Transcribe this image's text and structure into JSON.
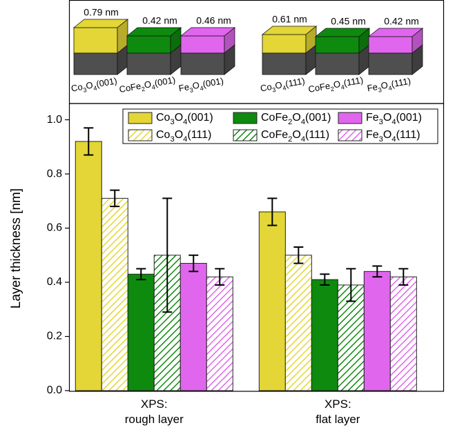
{
  "chart_data": {
    "type": "bar",
    "y_label": "Layer thickness [nm]",
    "categories": [
      "XPS:\nrough layer",
      "XPS:\nflat layer"
    ],
    "ylim": [
      0,
      1.06
    ],
    "yticks": [
      {
        "value": 0,
        "label": "0.0"
      },
      0.2,
      0.4,
      0.6,
      0.8,
      {
        "value": 1,
        "label": "1.0"
      }
    ],
    "series": [
      {
        "name": "Co3O4(001)",
        "color": "#e3d636",
        "hatch": false,
        "values": [
          0.92,
          0.66
        ],
        "errors": [
          0.05,
          0.05
        ]
      },
      {
        "name": "Co3O4(111)",
        "color": "#e3d636",
        "hatch": true,
        "values": [
          0.71,
          0.5
        ],
        "errors": [
          0.03,
          0.03
        ]
      },
      {
        "name": "CoFe2O4(001)",
        "color": "#0e8a0e",
        "hatch": false,
        "values": [
          0.43,
          0.41
        ],
        "errors": [
          0.02,
          0.02
        ]
      },
      {
        "name": "CoFe2O4(111)",
        "color": "#0e8a0e",
        "hatch": true,
        "values": [
          0.5,
          0.39
        ],
        "errors": [
          0.21,
          0.06
        ]
      },
      {
        "name": "Fe3O4(001)",
        "color": "#e066ee",
        "hatch": false,
        "values": [
          0.47,
          0.44
        ],
        "errors": [
          0.03,
          0.02
        ]
      },
      {
        "name": "Fe3O4(111)",
        "color": "#e066ee",
        "hatch": true,
        "values": [
          0.42,
          0.42
        ],
        "errors": [
          0.03,
          0.03
        ]
      }
    ]
  },
  "inset": {
    "groups": [
      {
        "blocks": [
          {
            "formula": "Co3O4(001)",
            "thickness": "0.79 nm"
          },
          {
            "formula": "CoFe2O4(001)",
            "thickness": "0.42 nm"
          },
          {
            "formula": "Fe3O4(001)",
            "thickness": "0.46 nm"
          }
        ]
      },
      {
        "blocks": [
          {
            "formula": "Co3O4(111)",
            "thickness": "0.61 nm"
          },
          {
            "formula": "CoFe2O4(111)",
            "thickness": "0.45 nm"
          },
          {
            "formula": "Fe3O4(111)",
            "thickness": "0.42 nm"
          }
        ]
      }
    ]
  }
}
